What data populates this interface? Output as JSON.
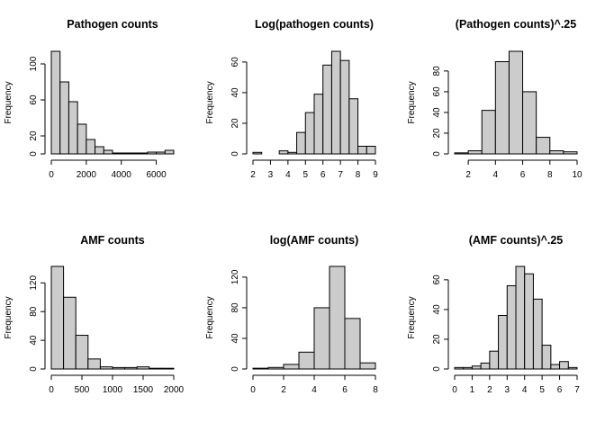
{
  "chart_data": [
    {
      "type": "bar",
      "title": "Pathogen counts",
      "xlabel": "",
      "ylabel": "Frequency",
      "bin_edges": [
        0,
        500,
        1000,
        1500,
        2000,
        2500,
        3000,
        3500,
        4000,
        4500,
        5000,
        5500,
        6000,
        6500,
        7000
      ],
      "values": [
        114,
        80,
        58,
        33,
        16,
        8,
        4,
        1,
        1,
        1,
        1,
        2,
        2,
        4
      ],
      "xlim": [
        0,
        7000
      ],
      "ylim": [
        0,
        114
      ],
      "x_ticks": [
        0,
        2000,
        4000,
        6000
      ],
      "y_ticks": [
        0,
        20,
        60,
        100
      ],
      "bar_color": "#cccccc"
    },
    {
      "type": "bar",
      "title": "Log(pathogen counts)",
      "xlabel": "",
      "ylabel": "Frequency",
      "bin_edges": [
        2,
        2.5,
        3,
        3.5,
        4,
        4.5,
        5,
        5.5,
        6,
        6.5,
        7,
        7.5,
        8,
        8.5,
        9
      ],
      "values": [
        1,
        0,
        0,
        2,
        1,
        14,
        27,
        39,
        58,
        67,
        61,
        36,
        5,
        5
      ],
      "xlim": [
        2,
        9
      ],
      "ylim": [
        0,
        67
      ],
      "x_ticks": [
        2,
        3,
        4,
        5,
        6,
        7,
        8,
        9
      ],
      "y_ticks": [
        0,
        20,
        40,
        60
      ],
      "bar_color": "#cccccc"
    },
    {
      "type": "bar",
      "title": "(Pathogen counts)^.25",
      "xlabel": "",
      "ylabel": "Frequency",
      "bin_edges": [
        1,
        2,
        3,
        4,
        5,
        6,
        7,
        8,
        9,
        10
      ],
      "values": [
        1,
        3,
        42,
        89,
        99,
        60,
        16,
        3,
        2
      ],
      "xlim": [
        1,
        10
      ],
      "ylim": [
        0,
        99
      ],
      "x_ticks": [
        2,
        4,
        6,
        8,
        10
      ],
      "y_ticks": [
        0,
        20,
        40,
        60,
        80
      ],
      "bar_color": "#cccccc"
    },
    {
      "type": "bar",
      "title": "AMF counts",
      "xlabel": "",
      "ylabel": "Frequency",
      "bin_edges": [
        0,
        200,
        400,
        600,
        800,
        1000,
        1200,
        1400,
        1600,
        1800,
        2000
      ],
      "values": [
        143,
        100,
        47,
        14,
        3,
        2,
        2,
        3,
        1,
        1
      ],
      "xlim": [
        0,
        2000
      ],
      "ylim": [
        0,
        143
      ],
      "x_ticks": [
        0,
        500,
        1000,
        1500,
        2000
      ],
      "y_ticks": [
        0,
        40,
        80,
        120
      ],
      "bar_color": "#cccccc"
    },
    {
      "type": "bar",
      "title": "log(AMF counts)",
      "xlabel": "",
      "ylabel": "Frequency",
      "bin_edges": [
        0,
        1,
        2,
        3,
        4,
        5,
        6,
        7,
        8
      ],
      "values": [
        1,
        2,
        6,
        22,
        80,
        134,
        66,
        8
      ],
      "xlim": [
        0,
        8
      ],
      "ylim": [
        0,
        134
      ],
      "x_ticks": [
        0,
        2,
        4,
        6,
        8
      ],
      "y_ticks": [
        0,
        40,
        80,
        120
      ],
      "bar_color": "#cccccc"
    },
    {
      "type": "bar",
      "title": "(AMF counts)^.25",
      "xlabel": "",
      "ylabel": "Frequency",
      "bin_edges": [
        0,
        0.5,
        1,
        1.5,
        2,
        2.5,
        3,
        3.5,
        4,
        4.5,
        5,
        5.5,
        6,
        6.5,
        7
      ],
      "values": [
        1,
        1,
        2,
        4,
        12,
        36,
        56,
        69,
        64,
        47,
        16,
        3,
        5,
        1
      ],
      "xlim": [
        0,
        7
      ],
      "ylim": [
        0,
        69
      ],
      "x_ticks": [
        0,
        1,
        2,
        3,
        4,
        5,
        6,
        7
      ],
      "y_ticks": [
        0,
        20,
        40,
        60
      ],
      "bar_color": "#cccccc"
    }
  ]
}
